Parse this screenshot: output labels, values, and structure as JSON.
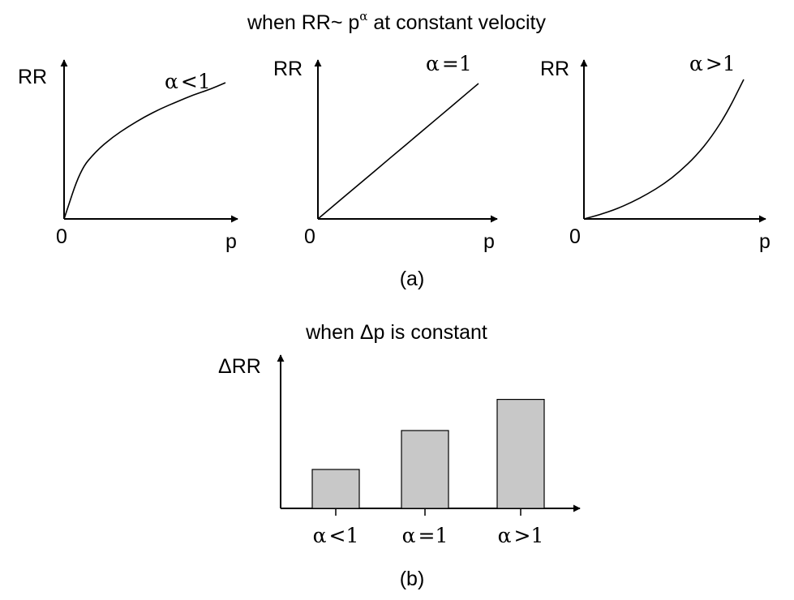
{
  "figure": {
    "title_a": {
      "before": "when RR~ p",
      "sup": "α",
      "after": " at constant velocity"
    },
    "caption_a": "(a)",
    "title_b": "when Δp is constant",
    "caption_b": "(b)"
  },
  "chart_data": [
    {
      "type": "line",
      "title": "",
      "xlabel": "p",
      "ylabel": "RR",
      "origin_label": "0",
      "annotation": {
        "symbol": "α",
        "rel": "<",
        "value": "1"
      },
      "x": [
        0,
        0.1,
        0.2,
        0.3,
        0.4,
        0.5,
        0.6,
        0.7,
        0.8,
        0.9,
        1.0
      ],
      "y": [
        0,
        0.36,
        0.5,
        0.6,
        0.68,
        0.75,
        0.81,
        0.86,
        0.91,
        0.95,
        1.0
      ],
      "curve": "concave"
    },
    {
      "type": "line",
      "title": "",
      "xlabel": "p",
      "ylabel": "RR",
      "origin_label": "0",
      "annotation": {
        "symbol": "α",
        "rel": "=",
        "value": "1"
      },
      "x": [
        0,
        0.1,
        0.2,
        0.3,
        0.4,
        0.5,
        0.6,
        0.7,
        0.8,
        0.9,
        1.0
      ],
      "y": [
        0,
        0.1,
        0.2,
        0.3,
        0.4,
        0.5,
        0.6,
        0.7,
        0.8,
        0.9,
        1.0
      ],
      "curve": "linear"
    },
    {
      "type": "line",
      "title": "",
      "xlabel": "p",
      "ylabel": "RR",
      "origin_label": "0",
      "annotation": {
        "symbol": "α",
        "rel": ">",
        "value": "1"
      },
      "x": [
        0,
        0.1,
        0.2,
        0.3,
        0.4,
        0.5,
        0.6,
        0.7,
        0.8,
        0.9,
        1.0
      ],
      "y": [
        0,
        0.03,
        0.07,
        0.12,
        0.18,
        0.25,
        0.34,
        0.45,
        0.59,
        0.77,
        1.0
      ],
      "curve": "convex"
    },
    {
      "type": "bar",
      "title": "",
      "xlabel": "",
      "ylabel": "ΔRR",
      "categories": [
        {
          "symbol": "α",
          "rel": "<",
          "value": "1"
        },
        {
          "symbol": "α",
          "rel": "=",
          "value": "1"
        },
        {
          "symbol": "α",
          "rel": ">",
          "value": "1"
        }
      ],
      "values": [
        0.3,
        0.6,
        0.84
      ],
      "ylim": [
        0,
        1
      ],
      "bar_color": "#c8c8c8"
    }
  ]
}
